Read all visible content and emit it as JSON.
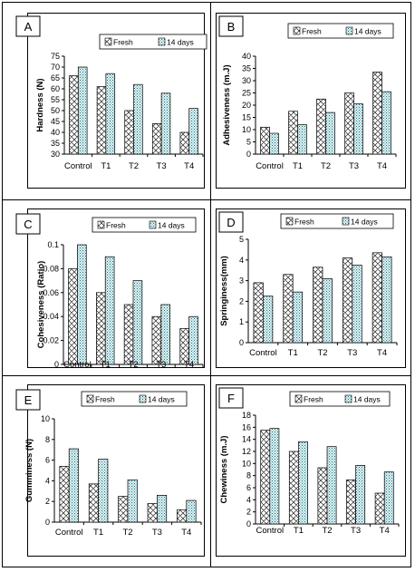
{
  "chart_data": [
    {
      "panel": "A",
      "type": "bar",
      "categories": [
        "Control",
        "T1",
        "T2",
        "T3",
        "T4"
      ],
      "series": [
        {
          "name": "Fresh",
          "values": [
            66,
            61,
            50,
            44,
            40
          ]
        },
        {
          "name": "14 days",
          "values": [
            70,
            67,
            62,
            58,
            51
          ]
        }
      ],
      "ylabel": "Hardness (N)",
      "ylim": [
        30,
        75
      ],
      "yticks": [
        "30",
        "35",
        "40",
        "45",
        "50",
        "55",
        "60",
        "65",
        "70",
        "75"
      ],
      "legend": "top"
    },
    {
      "panel": "B",
      "type": "bar",
      "categories": [
        "Control",
        "T1",
        "T2",
        "T3",
        "T4"
      ],
      "series": [
        {
          "name": "Fresh",
          "values": [
            11,
            17.5,
            22.5,
            25,
            33.5
          ]
        },
        {
          "name": "14 days",
          "values": [
            8.5,
            12,
            17,
            20.5,
            25.5
          ]
        }
      ],
      "ylabel": "Adhesiveness (m.J)",
      "ylim": [
        0,
        40
      ],
      "yticks": [
        "0",
        "5",
        "10",
        "15",
        "20",
        "25",
        "30",
        "35",
        "40"
      ],
      "legend": "top"
    },
    {
      "panel": "C",
      "type": "bar",
      "categories": [
        "Control",
        "T1",
        "T2",
        "T3",
        "T4"
      ],
      "series": [
        {
          "name": "Fresh",
          "values": [
            0.08,
            0.06,
            0.05,
            0.04,
            0.03
          ]
        },
        {
          "name": "14 days",
          "values": [
            0.1,
            0.09,
            0.07,
            0.05,
            0.04
          ]
        }
      ],
      "ylabel": "Cohesiveness (Ratio)",
      "ylim": [
        0,
        0.1
      ],
      "yticks": [
        "0",
        "0.02",
        "0.04",
        "0.06",
        "0.08",
        "0.1"
      ],
      "legend": "top"
    },
    {
      "panel": "D",
      "type": "bar",
      "categories": [
        "Control",
        "T1",
        "T2",
        "T3",
        "T4"
      ],
      "series": [
        {
          "name": "Fresh",
          "values": [
            2.9,
            3.3,
            3.65,
            4.1,
            4.35
          ]
        },
        {
          "name": "14 days",
          "values": [
            2.25,
            2.45,
            3.1,
            3.75,
            4.15
          ]
        }
      ],
      "ylabel": "Springiness(mm)",
      "ylim": [
        0,
        5
      ],
      "yticks": [
        "0",
        "1",
        "2",
        "3",
        "4",
        "5"
      ],
      "legend": "top"
    },
    {
      "panel": "E",
      "type": "bar",
      "categories": [
        "Control",
        "T1",
        "T2",
        "T3",
        "T4"
      ],
      "series": [
        {
          "name": "Fresh",
          "values": [
            5.4,
            3.7,
            2.5,
            1.8,
            1.2
          ]
        },
        {
          "name": "14 days",
          "values": [
            7.1,
            6.1,
            4.1,
            2.6,
            2.1
          ]
        }
      ],
      "ylabel": "Gumminess (N)",
      "ylim": [
        0,
        10
      ],
      "yticks": [
        "0",
        "2",
        "4",
        "6",
        "8",
        "10"
      ],
      "legend": "top"
    },
    {
      "panel": "F",
      "type": "bar",
      "categories": [
        "Control",
        "T1",
        "T2",
        "T3",
        "T4"
      ],
      "series": [
        {
          "name": "Fresh",
          "values": [
            15.5,
            12,
            9.3,
            7.3,
            5.1
          ]
        },
        {
          "name": "14 days",
          "values": [
            15.8,
            13.6,
            12.8,
            9.7,
            8.6
          ]
        }
      ],
      "ylabel": "Chewiness (m.J)",
      "ylim": [
        0,
        18
      ],
      "yticks": [
        "0",
        "2",
        "4",
        "6",
        "8",
        "10",
        "12",
        "14",
        "16",
        "18"
      ],
      "legend": "top"
    }
  ]
}
